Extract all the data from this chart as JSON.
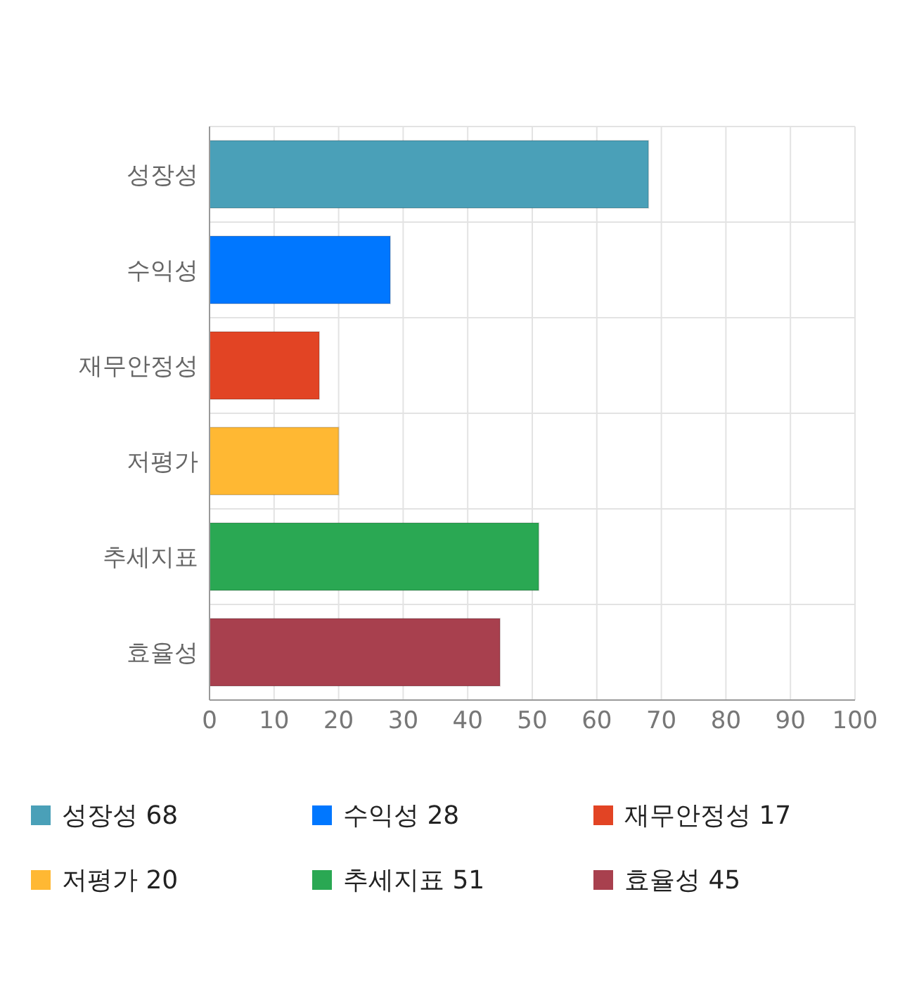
{
  "chart_data": {
    "type": "bar",
    "orientation": "horizontal",
    "stacked": true,
    "categories": [
      "성장성",
      "수익성",
      "재무안정성",
      "저평가",
      "추세지표",
      "효율성"
    ],
    "series": [
      {
        "name": "성장성 68",
        "color": "#4aa0b8",
        "values": [
          68,
          null,
          null,
          null,
          null,
          null
        ]
      },
      {
        "name": "수익성 28",
        "color": "#0077ff",
        "values": [
          null,
          28,
          null,
          null,
          null,
          null
        ]
      },
      {
        "name": "재무안정성 17",
        "color": "#e24424",
        "values": [
          null,
          null,
          17,
          null,
          null,
          null
        ]
      },
      {
        "name": "저평가 20",
        "color": "#ffb833",
        "values": [
          null,
          null,
          null,
          20,
          null,
          null
        ]
      },
      {
        "name": "추세지표 51",
        "color": "#2aa853",
        "values": [
          null,
          null,
          null,
          null,
          51,
          null
        ]
      },
      {
        "name": "효율성 45",
        "color": "#a8404e",
        "values": [
          null,
          null,
          null,
          null,
          null,
          45
        ]
      }
    ],
    "xlim": [
      0,
      100
    ],
    "xticks": [
      0,
      10,
      20,
      30,
      40,
      50,
      60,
      70,
      80,
      90,
      100
    ],
    "grid": true,
    "legend": "bottom"
  }
}
